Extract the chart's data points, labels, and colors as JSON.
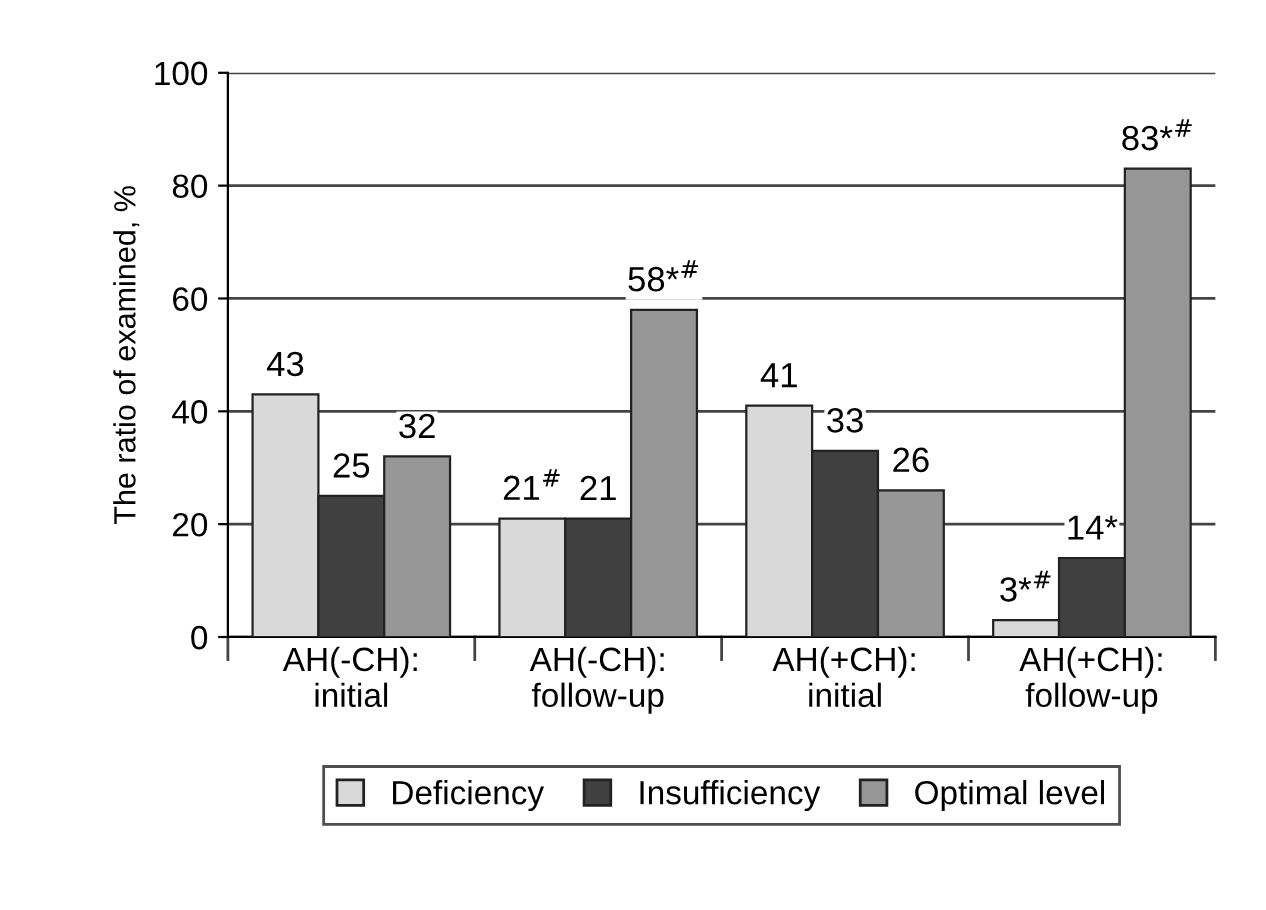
{
  "chart_data": {
    "type": "bar",
    "ylabel": "The ratio of examined, %",
    "categories": [
      "AH(-CH):\ninitial",
      "AH(-CH):\nfollow-up",
      "AH(+CH):\ninitial",
      "AH(+CH):\nfollow-up"
    ],
    "series": [
      {
        "name": "Deficiency",
        "color": "#d9d9d9",
        "values": [
          43,
          21,
          41,
          3
        ],
        "value_labels": [
          "43",
          "21$^{#}$",
          "41",
          "3*$^{#}$"
        ]
      },
      {
        "name": "Insufficiency",
        "color": "#404040",
        "values": [
          25,
          21,
          33,
          14
        ],
        "value_labels": [
          "25",
          "21",
          "33",
          "14*"
        ]
      },
      {
        "name": "Optimal level",
        "color": "#969696",
        "values": [
          32,
          58,
          26,
          83
        ],
        "value_labels": [
          "32",
          "58*$^{#}$",
          "26",
          "83*$^{#}$"
        ]
      }
    ],
    "ylim": [
      0,
      100
    ],
    "yticks": [
      0,
      20,
      40,
      60,
      80,
      100
    ],
    "grid": "y",
    "legend": "bottom"
  }
}
